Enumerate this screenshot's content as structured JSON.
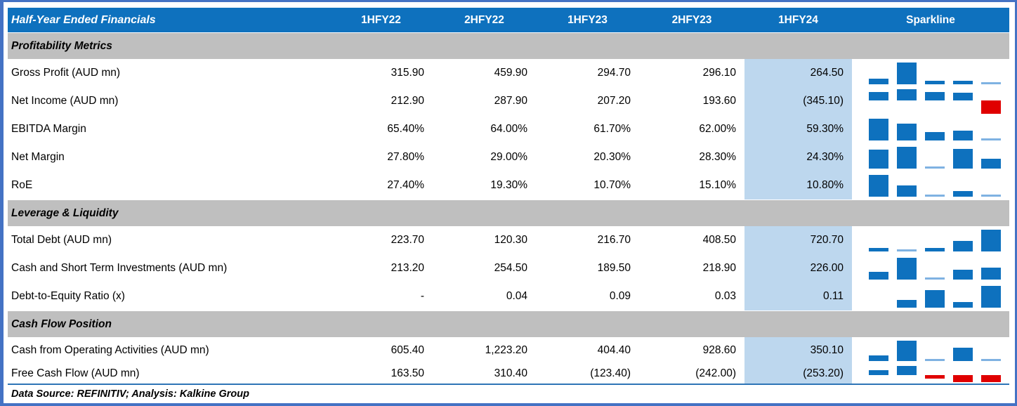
{
  "header": {
    "title": "Half-Year Ended Financials",
    "columns": [
      "1HFY22",
      "2HFY22",
      "1HFY23",
      "2HFY23",
      "1HFY24"
    ],
    "sparkline_label": "Sparkline",
    "highlighted_column": "1HFY24"
  },
  "footer": {
    "text": "Data Source: REFINITIV; Analysis: Kalkine Group"
  },
  "colors": {
    "header_bg": "#0E71BE",
    "header_text": "#FFFFFF",
    "section_bg": "#BFBFBF",
    "highlight_bg": "#BDD7EE",
    "positive_bar": "#0E71BE",
    "negative_bar": "#E00000",
    "min_bar": "#7FB2E2",
    "frame": "#4472C4",
    "rule": "#2E75B6"
  },
  "chart_data": {
    "type": "table",
    "title": "Half-Year Ended Financials",
    "columns": [
      "1HFY22",
      "2HFY22",
      "1HFY23",
      "2HFY23",
      "1HFY24"
    ],
    "highlighted_column": "1HFY24",
    "sparkline": {
      "type": "bar",
      "positive_color": "#0E71BE",
      "negative_color": "#E00000",
      "scale": "auto-min-to-max"
    },
    "sections": [
      {
        "label": "Profitability Metrics",
        "rows": [
          {
            "label": "Gross Profit (AUD mn)",
            "display": [
              "315.90",
              "459.90",
              "294.70",
              "296.10",
              "264.50"
            ],
            "values": [
              315.9,
              459.9,
              294.7,
              296.1,
              264.5
            ]
          },
          {
            "label": "Net Income (AUD mn)",
            "display": [
              "212.90",
              "287.90",
              "207.20",
              "193.60",
              "(345.10)"
            ],
            "values": [
              212.9,
              287.9,
              207.2,
              193.6,
              -345.1
            ]
          },
          {
            "label": "EBITDA Margin",
            "display": [
              "65.40%",
              "64.00%",
              "61.70%",
              "62.00%",
              "59.30%"
            ],
            "values": [
              65.4,
              64.0,
              61.7,
              62.0,
              59.3
            ]
          },
          {
            "label": "Net Margin",
            "display": [
              "27.80%",
              "29.00%",
              "20.30%",
              "28.30%",
              "24.30%"
            ],
            "values": [
              27.8,
              29.0,
              20.3,
              28.3,
              24.3
            ]
          },
          {
            "label": "RoE",
            "display": [
              "27.40%",
              "19.30%",
              "10.70%",
              "15.10%",
              "10.80%"
            ],
            "values": [
              27.4,
              19.3,
              10.7,
              15.1,
              10.8
            ]
          }
        ]
      },
      {
        "label": "Leverage & Liquidity",
        "rows": [
          {
            "label": "Total Debt (AUD mn)",
            "display": [
              "223.70",
              "120.30",
              "216.70",
              "408.50",
              "720.70"
            ],
            "values": [
              223.7,
              120.3,
              216.7,
              408.5,
              720.7
            ]
          },
          {
            "label": "Cash and Short Term Investments (AUD mn)",
            "display": [
              "213.20",
              "254.50",
              "189.50",
              "218.90",
              "226.00"
            ],
            "values": [
              213.2,
              254.5,
              189.5,
              218.9,
              226.0
            ]
          },
          {
            "label": "Debt-to-Equity Ratio (x)",
            "display": [
              "-",
              "0.04",
              "0.09",
              "0.03",
              "0.11"
            ],
            "values": [
              0,
              0.04,
              0.09,
              0.03,
              0.11
            ]
          }
        ]
      },
      {
        "label": "Cash Flow Position",
        "rows": [
          {
            "label": "Cash from Operating Activities (AUD mn)",
            "display": [
              "605.40",
              "1,223.20",
              "404.40",
              "928.60",
              "350.10"
            ],
            "values": [
              605.4,
              1223.2,
              404.4,
              928.6,
              350.1
            ]
          },
          {
            "label": "Free Cash Flow (AUD mn)",
            "display": [
              "163.50",
              "310.40",
              "(123.40)",
              "(242.00)",
              "(253.20)"
            ],
            "values": [
              163.5,
              310.4,
              -123.4,
              -242.0,
              -253.2
            ]
          }
        ]
      }
    ]
  }
}
